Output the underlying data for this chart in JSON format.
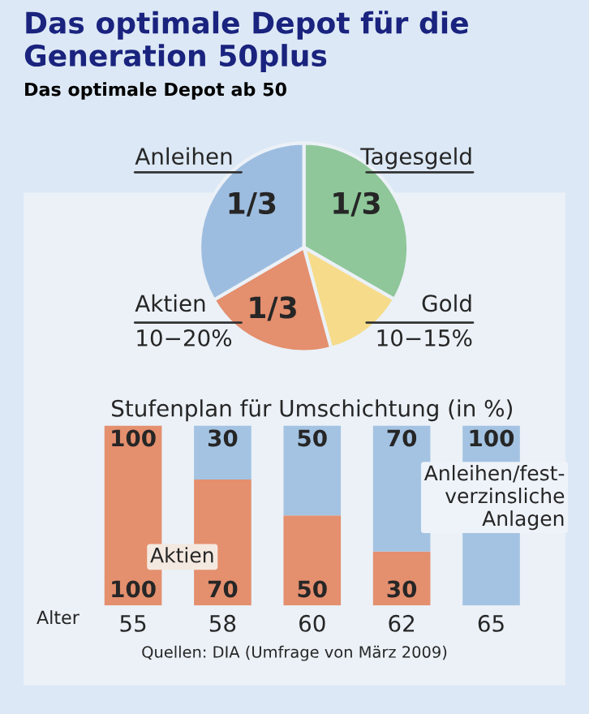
{
  "chart_data": [
    {
      "type": "pie",
      "title": "Das optimale Depot für die Generation 50plus",
      "subtitle": "Das optimale Depot ab 50",
      "categories": [
        "Tagesgeld",
        "Gold\n10−15%",
        "Aktien\n10−20%",
        "Anleihen"
      ],
      "values": [
        33.3,
        12.5,
        20.8,
        33.4
      ],
      "colors": [
        "#8fc79a",
        "#f6dc8a",
        "#e48f6e",
        "#9dbde0"
      ],
      "annotations": [
        "1/3",
        "1/3",
        "1/3"
      ]
    },
    {
      "type": "bar",
      "title": "Stufenplan für Umschichtung (in %)",
      "xlabel": "Alter",
      "categories": [
        "55",
        "58",
        "60",
        "62",
        "65"
      ],
      "stacked": true,
      "series": [
        {
          "name": "Aktien",
          "color": "#e48f6e",
          "values": [
            100,
            70,
            50,
            30,
            0
          ],
          "value_labels": [
            "100",
            "70",
            "50",
            "30",
            null
          ]
        },
        {
          "name": "Anleihen/fest-\nverzinsliche\nAnlagen",
          "color": "#a4c3e2",
          "values": [
            0,
            30,
            50,
            70,
            100
          ],
          "value_labels": [
            null,
            "30",
            "50",
            "70",
            "100"
          ]
        }
      ],
      "annotations": [
        "100",
        "Quellen: DIA (Umfrage von März 2009)"
      ]
    }
  ]
}
